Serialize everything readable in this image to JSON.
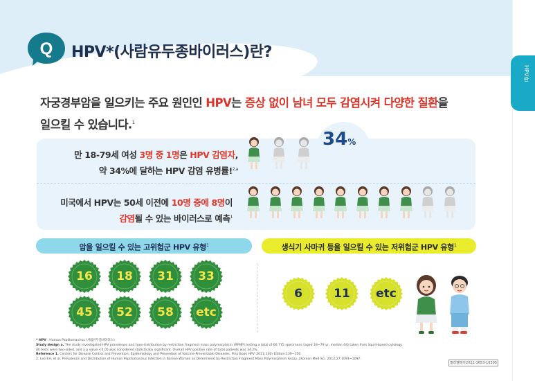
{
  "side_tab": {
    "label": "HPV란"
  },
  "header": {
    "q_letter": "Q",
    "title": "HPV*(사람유두종바이러스)란?"
  },
  "intro": {
    "part1": "자궁경부암을 일으키는 주요 원인인 ",
    "hpv": "HPV",
    "part2": "는 ",
    "highlight": "증상 없이 남녀 모두 감염시켜 다양한 질환",
    "part3": "을",
    "line2": "일으킬 수 있습니다.",
    "ref": "1"
  },
  "stats": {
    "percent_value": "34",
    "percent_unit": "%",
    "stat1": {
      "a": "만 18-79세 여성 ",
      "hl1": "3명 중 1명",
      "b": "은 ",
      "hl2": "HPV 감염자",
      "c": ",",
      "line2": "약 34%에 달하는 HPV 감염 유병률!",
      "ref": "2,a"
    },
    "stat2": {
      "a": "미국에서 HPV는 50세 이전에 ",
      "hl1": "10명 중에 8명",
      "b": "이",
      "hl2": "감염",
      "line2": "될 수 있는 바이러스로 예측",
      "ref": "1"
    },
    "group1_colored": 1,
    "group1_total": 3,
    "group2_colored": 8,
    "group2_total": 10
  },
  "high_risk": {
    "header": "암을 일으킬 수 있는 고위험군 HPV 유형",
    "ref": "1",
    "types": [
      "16",
      "18",
      "31",
      "33",
      "45",
      "52",
      "58",
      "etc"
    ]
  },
  "low_risk": {
    "header": "생식기 사마귀 등을 일으킬 수 있는 저위험군 HPV 유형",
    "ref": "1",
    "types": [
      "6",
      "11",
      "etc"
    ]
  },
  "footnotes": {
    "hpv_def_label": "* HPV",
    "hpv_def": " : Human Papillomavirus (사람유두종바이러스)",
    "design_label": "Study design a.",
    "design": " The study investigated HPV prevalence and type distribution by restriction fragment mass polymorphism (RFMP) testing a total of 60,775 specimens (aged 18~79 yr, median 44) taken from liquid-based cytology.",
    "design2": "All tests were two-sided, and a p value <0.05 was considered statistically significant. Overall HPV positive rate of total patients was 34.2%.",
    "ref_label": "Reference 1.",
    "ref1": " Centers for Disease Control and Prevention. Epidemiology and Prevention of Vaccine-Preventable Diseases. Pink Book HPV. 2011;13th Edition:139~150.",
    "ref2": "2. Lee EH, et al. Prevalence and Distribution of Human Papillomavirus Infection in Korean Women as Determined by Restriction Fragment Mass Polymorphism Assay. J Korean Med Sci. 2012;27:1091~1097.",
    "code": "필라델피아2022-1653-10305"
  },
  "colors": {
    "accent_teal": "#1aa9c6",
    "highlight_red": "#e0392a",
    "navy": "#1d2f4e",
    "high_seal": "#2f8f3a",
    "low_seal": "#d7e02a"
  }
}
